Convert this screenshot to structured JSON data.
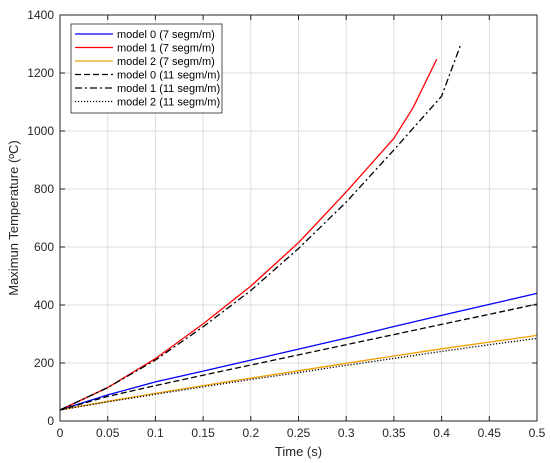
{
  "chart_data": {
    "type": "line",
    "xlabel": "Time (s)",
    "ylabel": "Maximun Temperature (ºC)",
    "xlim": [
      0,
      0.5
    ],
    "ylim": [
      0,
      1400
    ],
    "xticks": [
      0,
      0.05,
      0.1,
      0.15,
      0.2,
      0.25,
      0.3,
      0.35,
      0.4,
      0.45,
      0.5
    ],
    "xtick_labels": [
      "0",
      "0.05",
      "0.1",
      "0.15",
      "0.2",
      "0.25",
      "0.3",
      "0.35",
      "0.4",
      "0.45",
      "0.5"
    ],
    "yticks": [
      0,
      200,
      400,
      600,
      800,
      1000,
      1200,
      1400
    ],
    "ytick_labels": [
      "0",
      "200",
      "400",
      "600",
      "800",
      "1000",
      "1200",
      "1400"
    ],
    "grid": true,
    "legend_position": "top-left",
    "series": [
      {
        "name": "model 0 (7 segm/m)",
        "color": "#0000ff",
        "dash": "solid",
        "x": [
          0,
          0.05,
          0.1,
          0.15,
          0.2,
          0.25,
          0.3,
          0.35,
          0.4,
          0.45,
          0.5
        ],
        "y": [
          38,
          90,
          135,
          172,
          210,
          248,
          286,
          326,
          364,
          402,
          440
        ]
      },
      {
        "name": "model 1 (7 segm/m)",
        "color": "#ff0000",
        "dash": "solid",
        "x": [
          0,
          0.05,
          0.1,
          0.15,
          0.2,
          0.25,
          0.3,
          0.35,
          0.37,
          0.395
        ],
        "y": [
          38,
          115,
          215,
          335,
          465,
          615,
          790,
          975,
          1080,
          1248
        ]
      },
      {
        "name": "model 2 (7 segm/m)",
        "color": "#f0a000",
        "dash": "solid",
        "x": [
          0,
          0.05,
          0.1,
          0.15,
          0.2,
          0.25,
          0.3,
          0.35,
          0.4,
          0.45,
          0.5
        ],
        "y": [
          38,
          68,
          95,
          122,
          148,
          173,
          199,
          224,
          249,
          272,
          295
        ]
      },
      {
        "name": "model 0 (11 segm/m)",
        "color": "#000000",
        "dash": "dashed",
        "x": [
          0,
          0.05,
          0.1,
          0.15,
          0.2,
          0.25,
          0.3,
          0.35,
          0.4,
          0.45,
          0.5
        ],
        "y": [
          38,
          85,
          122,
          158,
          193,
          228,
          263,
          298,
          333,
          368,
          403
        ]
      },
      {
        "name": "model 1 (11 segm/m)",
        "color": "#000000",
        "dash": "dashdot",
        "x": [
          0,
          0.05,
          0.1,
          0.15,
          0.2,
          0.25,
          0.3,
          0.35,
          0.4,
          0.42
        ],
        "y": [
          38,
          115,
          210,
          325,
          450,
          595,
          755,
          935,
          1120,
          1298
        ]
      },
      {
        "name": "model 2 (11 segm/m)",
        "color": "#000000",
        "dash": "dotted",
        "x": [
          0,
          0.05,
          0.1,
          0.15,
          0.2,
          0.25,
          0.3,
          0.35,
          0.4,
          0.45,
          0.5
        ],
        "y": [
          38,
          66,
          92,
          118,
          143,
          167,
          192,
          216,
          240,
          263,
          285
        ]
      }
    ]
  }
}
